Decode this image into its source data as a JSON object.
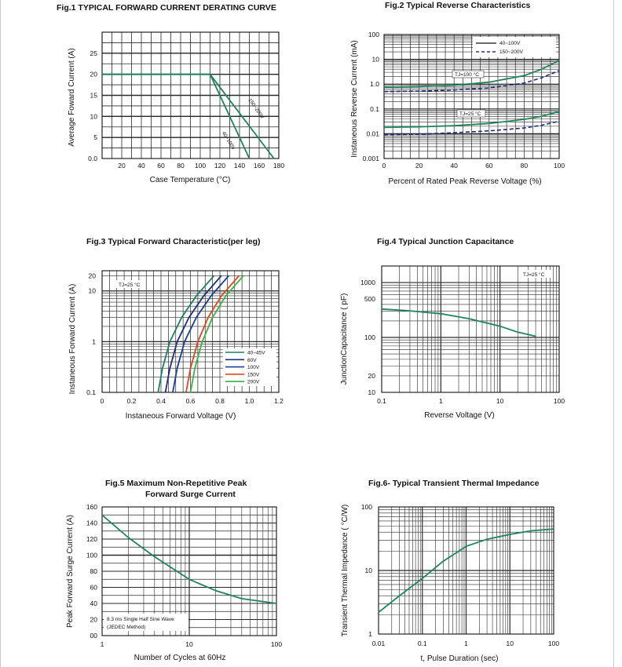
{
  "colors": {
    "green": "#20845a",
    "navy": "#1d2d7a",
    "teal": "#1d7f62",
    "blue": "#1b3a9a",
    "red": "#e2461e",
    "lightgreen": "#3cb04a",
    "grid": "#2a2a2a",
    "dash": "#28308a"
  },
  "chart_data": [
    {
      "id": "fig1",
      "type": "line",
      "title": "Fig.1 TYPICAL FORWARD CURRENT DERATING CURVE",
      "xlabel": "Case Temperature (°C)",
      "ylabel": "Average Foward Current (A)",
      "xlim": [
        0,
        180
      ],
      "ylim": [
        0,
        30
      ],
      "x_ticks": [
        "20",
        "40",
        "60",
        "80",
        "100",
        "120",
        "140",
        "160",
        "180"
      ],
      "y_ticks": [
        "0.0",
        "5",
        "10",
        "15",
        "20",
        "25"
      ],
      "series": [
        {
          "name": "40~100V",
          "x": [
            0,
            110,
            150
          ],
          "y": [
            20,
            20,
            0
          ]
        },
        {
          "name": "150~200V",
          "x": [
            0,
            110,
            175
          ],
          "y": [
            20,
            20,
            0
          ]
        }
      ]
    },
    {
      "id": "fig2",
      "type": "line",
      "title": "Fig.2 Typical Reverse Characteristics",
      "xlabel": "Percent of Rated Peak Reverse Voltage (%)",
      "ylabel": "Instaneous Reverse Current (mA)",
      "xlim": [
        0,
        100
      ],
      "ylim": [
        0.001,
        100
      ],
      "yscale": "log",
      "x_ticks": [
        "0",
        "20",
        "40",
        "60",
        "80",
        "100"
      ],
      "y_ticks": [
        "0.001",
        "0.01",
        "0.1",
        "1.0",
        "10",
        "100"
      ],
      "legend": [
        {
          "label": "40~100V",
          "style": "solid"
        },
        {
          "label": "150~200V",
          "style": "dashed"
        }
      ],
      "legend_position": "top-right",
      "annotations": [
        "TJ=100 °C",
        "TJ=25 °C"
      ],
      "series": [
        {
          "name": "40~100V",
          "condition": "TJ=100 °C",
          "x": [
            0,
            20,
            40,
            60,
            80,
            90,
            100
          ],
          "y": [
            0.75,
            0.8,
            0.9,
            1.2,
            2.2,
            4,
            9
          ]
        },
        {
          "name": "150~200V",
          "condition": "TJ=100 °C",
          "x": [
            0,
            20,
            40,
            60,
            80,
            90,
            100
          ],
          "y": [
            0.5,
            0.52,
            0.58,
            0.7,
            1.1,
            1.8,
            3.5
          ]
        },
        {
          "name": "40~100V",
          "condition": "TJ=25 °C",
          "x": [
            0,
            20,
            40,
            60,
            80,
            90,
            100
          ],
          "y": [
            0.018,
            0.019,
            0.021,
            0.026,
            0.038,
            0.05,
            0.08
          ]
        },
        {
          "name": "150~200V",
          "condition": "TJ=25 °C",
          "x": [
            0,
            20,
            40,
            60,
            80,
            90,
            100
          ],
          "y": [
            0.009,
            0.0095,
            0.011,
            0.013,
            0.017,
            0.022,
            0.032
          ]
        }
      ]
    },
    {
      "id": "fig3",
      "type": "line",
      "title": "Fig.3 Typical Forward Characteristic(per leg)",
      "xlabel": "Instaneous Forward Voltage (V)",
      "ylabel": "Instaneous Forward Current (A)",
      "xlim": [
        0,
        1.2
      ],
      "ylim": [
        0.1,
        25
      ],
      "yscale": "log",
      "x_ticks": [
        "0",
        "0.2",
        "0.4",
        "0.6",
        "0.8",
        "1.0",
        "1.2"
      ],
      "y_ticks": [
        "0.1",
        "1",
        "10",
        "20"
      ],
      "annotations": [
        "TJ=25 °C"
      ],
      "legend_position": "lower-right",
      "series": [
        {
          "name": "40~45V",
          "x": [
            0.38,
            0.41,
            0.46,
            0.54,
            0.64,
            0.76
          ],
          "y": [
            0.1,
            0.3,
            1,
            3,
            8,
            20
          ]
        },
        {
          "name": "60V",
          "x": [
            0.43,
            0.46,
            0.51,
            0.59,
            0.69,
            0.81
          ],
          "y": [
            0.1,
            0.3,
            1,
            3,
            8,
            20
          ]
        },
        {
          "name": "100V",
          "x": [
            0.48,
            0.51,
            0.56,
            0.64,
            0.74,
            0.86
          ],
          "y": [
            0.1,
            0.3,
            1,
            3,
            8,
            20
          ]
        },
        {
          "name": "150V",
          "x": [
            0.57,
            0.6,
            0.65,
            0.72,
            0.81,
            0.93
          ],
          "y": [
            0.1,
            0.3,
            1,
            3,
            8,
            20
          ]
        },
        {
          "name": "200V",
          "x": [
            0.6,
            0.63,
            0.68,
            0.75,
            0.84,
            0.96
          ],
          "y": [
            0.1,
            0.3,
            1,
            3,
            8,
            20
          ]
        }
      ]
    },
    {
      "id": "fig4",
      "type": "line",
      "title": "Fig.4 Typical Junction Capacitance",
      "xlabel": "Reverse Voltage (V)",
      "ylabel": "JunctionCapacitance ( pF)",
      "xlim": [
        0.1,
        100
      ],
      "ylim": [
        10,
        2000
      ],
      "xscale": "log",
      "yscale": "log",
      "x_ticks": [
        "0.1",
        "1",
        "10",
        "100"
      ],
      "y_ticks": [
        "10",
        "20",
        "100",
        "500",
        "1000"
      ],
      "annotations": [
        "TJ=25 °C"
      ],
      "series": [
        {
          "name": "",
          "x": [
            0.1,
            0.3,
            1,
            3,
            10,
            20,
            40
          ],
          "y": [
            330,
            305,
            270,
            220,
            160,
            125,
            105
          ]
        }
      ]
    },
    {
      "id": "fig5",
      "type": "line",
      "title": "Fig.5 Maximum Non-Repetitive Peak",
      "subtitle": "Forward Surge Current",
      "xlabel": "Number of Cycles at 60Hz",
      "ylabel": "Peak Forward Surge Current (A)",
      "xlim": [
        1,
        100
      ],
      "ylim": [
        0,
        160
      ],
      "xscale": "log",
      "x_ticks": [
        "1",
        "10",
        "100"
      ],
      "y_ticks": [
        "00",
        "20",
        "40",
        "60",
        "80",
        "100",
        "120",
        "140",
        "160"
      ],
      "annotations": [
        "8.3 ms Single Half Sine Wave",
        "(JEDEC Method)"
      ],
      "series": [
        {
          "name": "",
          "x": [
            1,
            2,
            4,
            10,
            20,
            40,
            100
          ],
          "y": [
            150,
            122,
            98,
            70,
            56,
            46,
            40
          ]
        }
      ]
    },
    {
      "id": "fig6",
      "type": "line",
      "title": "Fig.6- Typical Transient Thermal Impedance",
      "xlabel": "t, Pulse Duration (sec)",
      "ylabel": "Transient Thermal Impedance ( °C/W)",
      "xlim": [
        0.01,
        100
      ],
      "ylim": [
        1,
        100
      ],
      "xscale": "log",
      "yscale": "log",
      "x_ticks": [
        "0.01",
        "0.1",
        "1",
        "10",
        "100"
      ],
      "y_ticks": [
        "1",
        "10",
        "100"
      ],
      "series": [
        {
          "name": "",
          "x": [
            0.01,
            0.03,
            0.1,
            0.3,
            1,
            3,
            10,
            30,
            100
          ],
          "y": [
            2.2,
            4,
            7.5,
            14,
            24,
            31,
            37,
            42,
            45
          ]
        }
      ]
    }
  ]
}
